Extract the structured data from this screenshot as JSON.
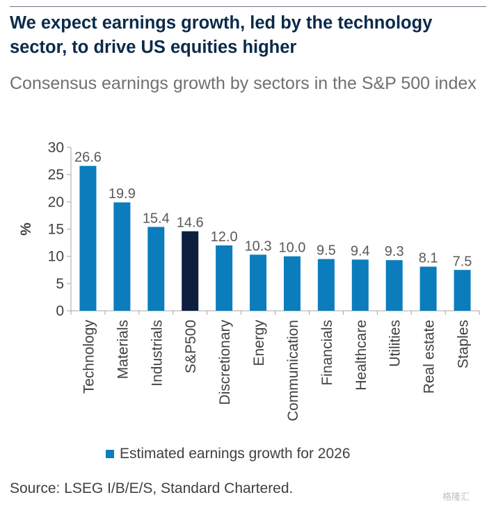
{
  "header": {
    "title": "We expect earnings growth, led by the technology sector, to drive US equities higher"
  },
  "chart_data": {
    "type": "bar",
    "title": "Consensus earnings growth by sectors in the S&P 500 index",
    "categories": [
      "Technology",
      "Materials",
      "Industrials",
      "S&P500",
      "Discretionary",
      "Energy",
      "Communication",
      "Financials",
      "Healthcare",
      "Utilities",
      "Real estate",
      "Staples"
    ],
    "series": [
      {
        "name": "Estimated earnings growth for 2026",
        "values": [
          26.6,
          19.9,
          15.4,
          14.6,
          12.0,
          10.3,
          10.0,
          9.5,
          9.4,
          9.3,
          8.1,
          7.5
        ]
      }
    ],
    "data_labels": [
      "26.6",
      "19.9",
      "15.4",
      "14.6",
      "12.0",
      "10.3",
      "10.0",
      "9.5",
      "9.4",
      "9.3",
      "8.1",
      "7.5"
    ],
    "highlight_category": "S&P500",
    "xlabel": "",
    "ylabel": "%",
    "ylim": [
      0,
      30
    ],
    "yticks": [
      0,
      5,
      10,
      15,
      20,
      25,
      30
    ],
    "grid": false,
    "legend_position": "bottom",
    "colors": {
      "bar": "#0b7dbc",
      "highlight": "#0c1f3f",
      "axis": "#a6a6a6",
      "text": "#404040",
      "label": "#595959"
    }
  },
  "footer": {
    "source": "Source: LSEG I/B/E/S, Standard Chartered.",
    "watermark": "格隆汇"
  }
}
